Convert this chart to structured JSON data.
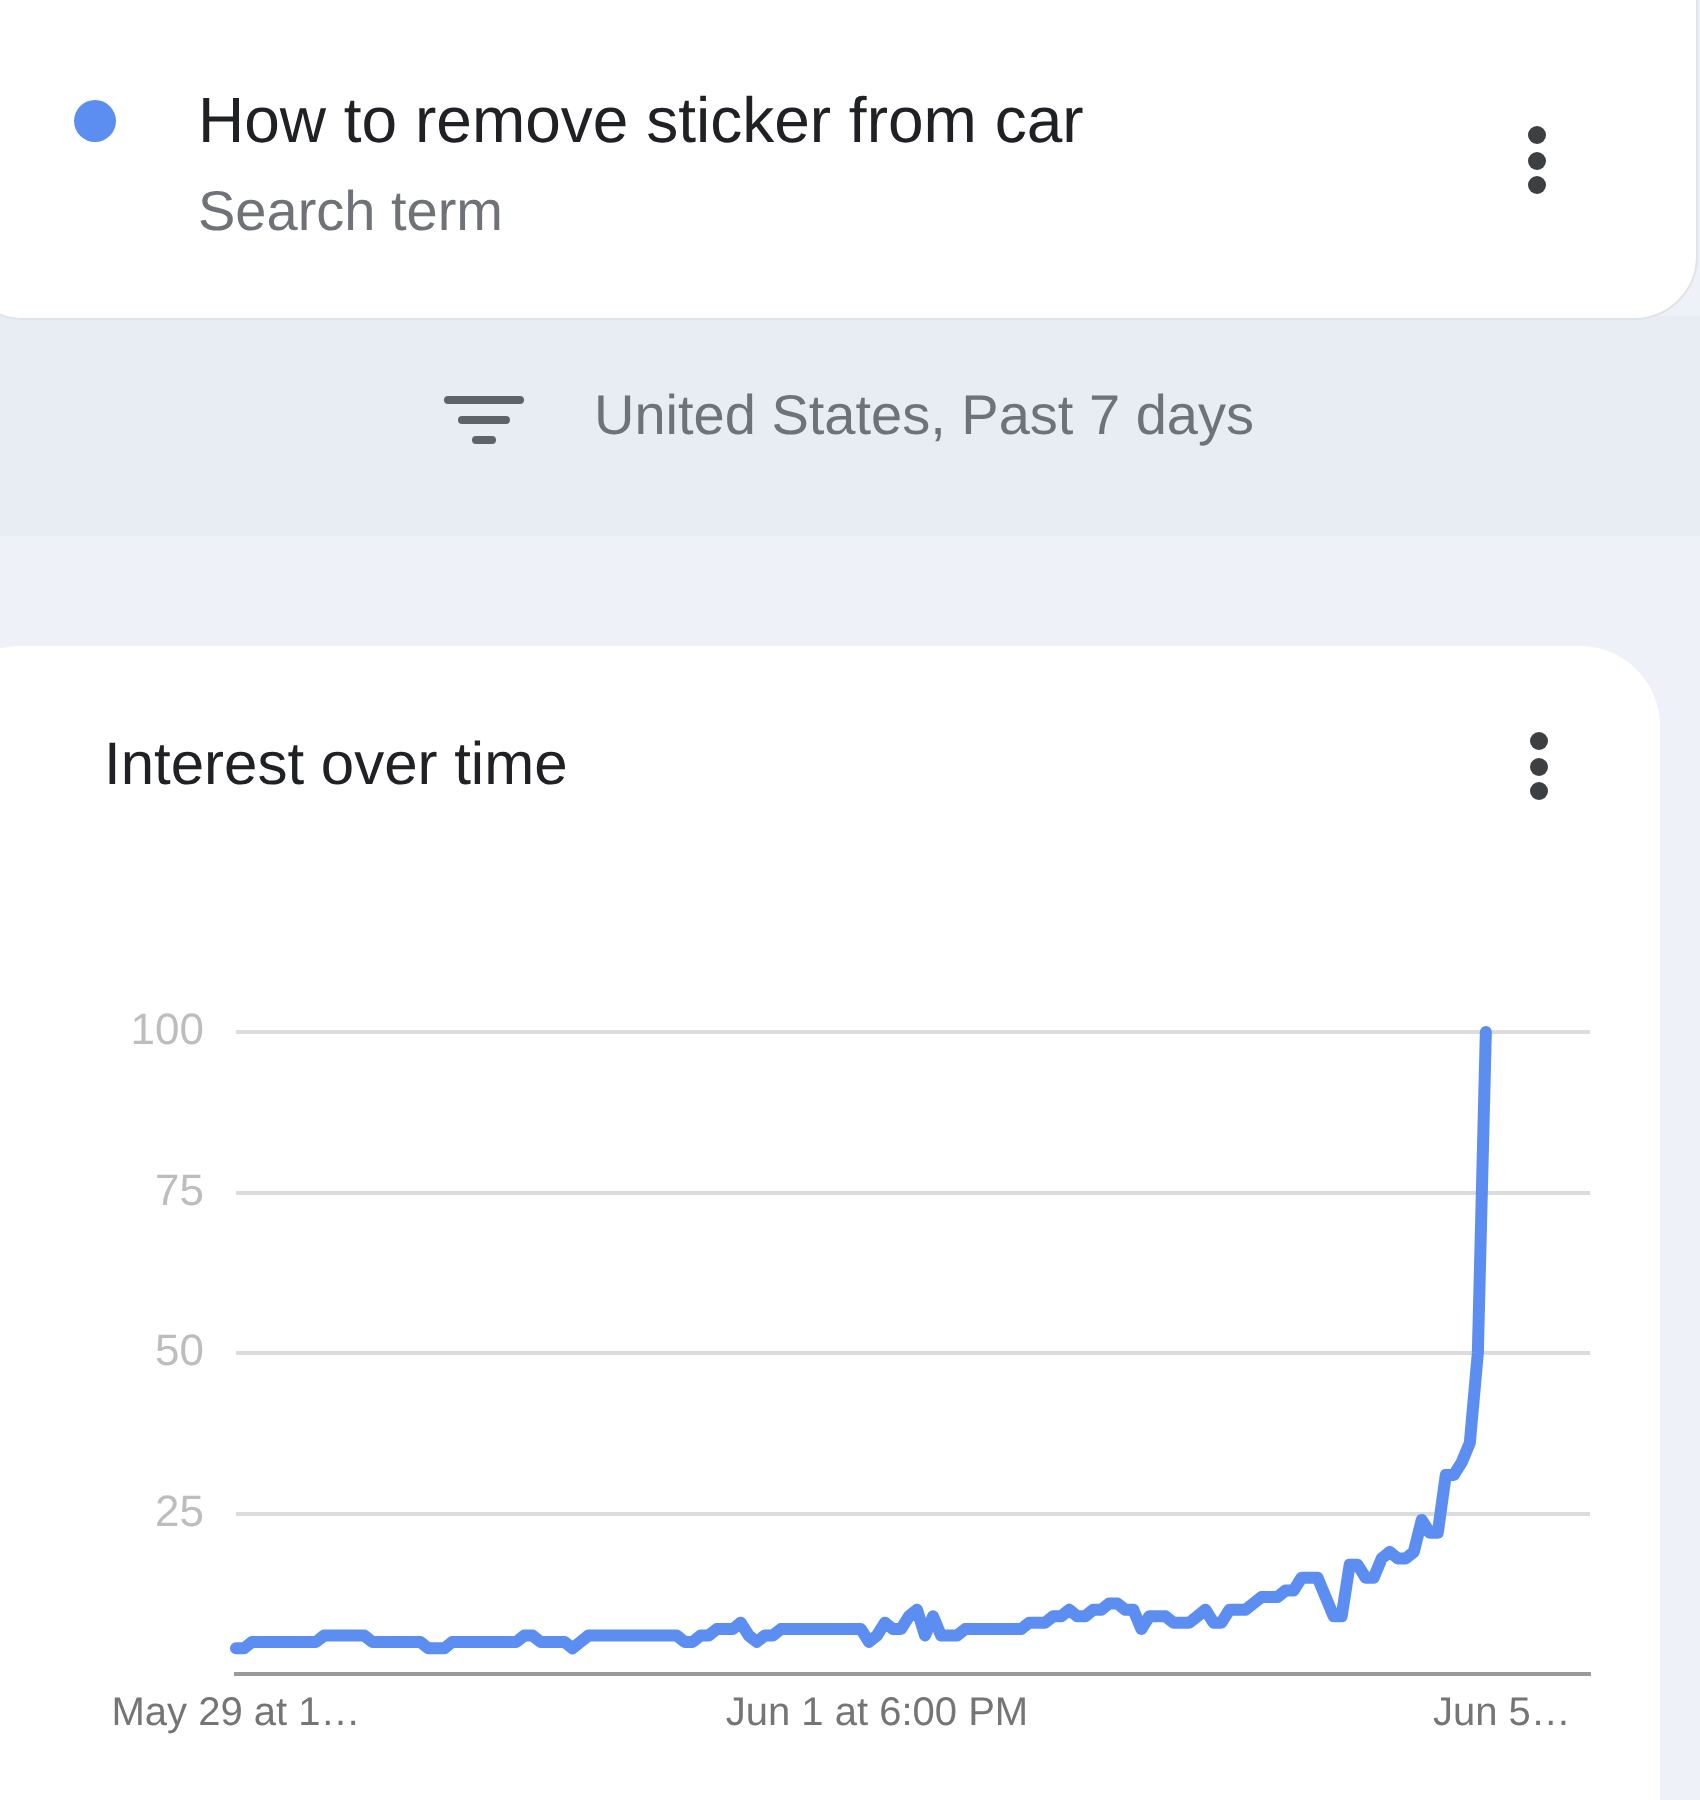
{
  "chart_data": {
    "type": "line",
    "title": "Interest over time",
    "subtitle": "United States, Past 7 days",
    "annotations": [
      "Search term"
    ],
    "categories": [
      "May 29 at 1…",
      null,
      null,
      null,
      null,
      null,
      null,
      null,
      null,
      null,
      null,
      null,
      null,
      null,
      null,
      null,
      null,
      null,
      null,
      null,
      null,
      null,
      null,
      null,
      null,
      null,
      null,
      null,
      null,
      null,
      null,
      null,
      null,
      null,
      null,
      null,
      null,
      null,
      null,
      null,
      null,
      null,
      null,
      null,
      null,
      null,
      null,
      null,
      null,
      null,
      null,
      null,
      null,
      null,
      null,
      null,
      null,
      null,
      null,
      null,
      null,
      null,
      null,
      null,
      null,
      null,
      null,
      null,
      null,
      null,
      null,
      null,
      null,
      null,
      null,
      null,
      null,
      null,
      null,
      null,
      "Jun 1 at 6:00 PM",
      null,
      null,
      null,
      null,
      null,
      null,
      null,
      null,
      null,
      null,
      null,
      null,
      null,
      null,
      null,
      null,
      null,
      null,
      null,
      null,
      null,
      null,
      null,
      null,
      null,
      null,
      null,
      null,
      null,
      null,
      null,
      null,
      null,
      null,
      null,
      null,
      null,
      null,
      null,
      null,
      null,
      null,
      null,
      null,
      null,
      null,
      null,
      null,
      null,
      null,
      null,
      null,
      null,
      null,
      null,
      null,
      null,
      null,
      null,
      null,
      null,
      null,
      null,
      null,
      null,
      null,
      null,
      null,
      null,
      null,
      null,
      null,
      null,
      null,
      null,
      null,
      null,
      "Jun 5…",
      null,
      null,
      null,
      null,
      null,
      null,
      null,
      null,
      null,
      null,
      null
    ],
    "series": [
      {
        "name": "How to remove sticker from car",
        "color": "#5b8ef0",
        "values": [
          4,
          4,
          5,
          5,
          5,
          5,
          5,
          5,
          5,
          5,
          5,
          6,
          6,
          6,
          6,
          6,
          6,
          5,
          5,
          5,
          5,
          5,
          5,
          5,
          4,
          4,
          4,
          5,
          5,
          5,
          5,
          5,
          5,
          5,
          5,
          5,
          6,
          6,
          5,
          5,
          5,
          5,
          4,
          5,
          6,
          6,
          6,
          6,
          6,
          6,
          6,
          6,
          6,
          6,
          6,
          6,
          5,
          5,
          6,
          6,
          7,
          7,
          7,
          8,
          6,
          5,
          6,
          6,
          7,
          7,
          7,
          7,
          7,
          7,
          7,
          7,
          7,
          7,
          7,
          5,
          6,
          8,
          7,
          7,
          9,
          10,
          6,
          9,
          6,
          6,
          6,
          7,
          7,
          7,
          7,
          7,
          7,
          7,
          7,
          8,
          8,
          8,
          9,
          9,
          10,
          9,
          9,
          10,
          10,
          11,
          11,
          10,
          10,
          7,
          9,
          9,
          9,
          8,
          8,
          8,
          9,
          10,
          8,
          8,
          10,
          10,
          10,
          11,
          12,
          12,
          12,
          13,
          13,
          15,
          15,
          15,
          12,
          9,
          9,
          17,
          17,
          15,
          15,
          18,
          19,
          18,
          18,
          19,
          24,
          22,
          22,
          31,
          31,
          33,
          36,
          50,
          100,
          null,
          null,
          null,
          null,
          null,
          null,
          null,
          null,
          null,
          null,
          null,
          null,
          null
        ]
      }
    ],
    "ylim": [
      0,
      100
    ],
    "yticks": [
      25,
      50,
      75,
      100
    ],
    "grid": "y",
    "legend": "top",
    "marker": "none",
    "line_style": "solid"
  }
}
